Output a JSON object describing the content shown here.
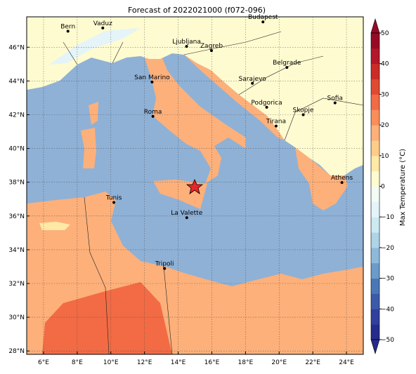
{
  "map": {
    "title": "Forecast of 2022021000 (f072-096)",
    "lon_lim": [
      5,
      25
    ],
    "lat_lim": [
      27.8,
      47.8
    ],
    "lon_ticks": [
      {
        "value": 6,
        "label": "6°E"
      },
      {
        "value": 8,
        "label": "8°E"
      },
      {
        "value": 10,
        "label": "10°E"
      },
      {
        "value": 12,
        "label": "12°E"
      },
      {
        "value": 14,
        "label": "14°E"
      },
      {
        "value": 16,
        "label": "16°E"
      },
      {
        "value": 18,
        "label": "18°E"
      },
      {
        "value": 20,
        "label": "20°E"
      },
      {
        "value": 22,
        "label": "22°E"
      },
      {
        "value": 24,
        "label": "24°E"
      }
    ],
    "lat_ticks": [
      {
        "value": 28,
        "label": "28°N"
      },
      {
        "value": 30,
        "label": "30°N"
      },
      {
        "value": 32,
        "label": "32°N"
      },
      {
        "value": 34,
        "label": "34°N"
      },
      {
        "value": 36,
        "label": "36°N"
      },
      {
        "value": 38,
        "label": "38°N"
      },
      {
        "value": 40,
        "label": "40°N"
      },
      {
        "value": 42,
        "label": "42°N"
      },
      {
        "value": 44,
        "label": "44°N"
      },
      {
        "value": 46,
        "label": "46°N"
      }
    ],
    "grid": true,
    "cities": [
      {
        "name": "Bern",
        "lon": 7.45,
        "lat": 46.95
      },
      {
        "name": "Vaduz",
        "lon": 9.52,
        "lat": 47.14
      },
      {
        "name": "Budapest",
        "lon": 19.04,
        "lat": 47.5
      },
      {
        "name": "Ljubljana",
        "lon": 14.5,
        "lat": 46.05
      },
      {
        "name": "Zagreb",
        "lon": 15.98,
        "lat": 45.8
      },
      {
        "name": "Belgrade",
        "lon": 20.46,
        "lat": 44.8
      },
      {
        "name": "San Marino",
        "lon": 12.45,
        "lat": 43.94
      },
      {
        "name": "Sarajevo",
        "lon": 18.41,
        "lat": 43.86
      },
      {
        "name": "Sofia",
        "lon": 23.32,
        "lat": 42.7
      },
      {
        "name": "Podgorica",
        "lon": 19.26,
        "lat": 42.44
      },
      {
        "name": "Skopje",
        "lon": 21.43,
        "lat": 42.0
      },
      {
        "name": "Roma",
        "lon": 12.5,
        "lat": 41.9
      },
      {
        "name": "Tirana",
        "lon": 19.82,
        "lat": 41.33
      },
      {
        "name": "Athens",
        "lon": 23.73,
        "lat": 37.98
      },
      {
        "name": "Tunis",
        "lon": 10.18,
        "lat": 36.8
      },
      {
        "name": "La Valette",
        "lon": 14.51,
        "lat": 35.9
      },
      {
        "name": "Tripoli",
        "lon": 13.19,
        "lat": 32.89
      }
    ],
    "colorbar": {
      "label": "Max Temperature (°C)",
      "lim": [
        -50,
        50
      ],
      "ticks": [
        {
          "value": -50,
          "label": "−50"
        },
        {
          "value": -40,
          "label": "−40"
        },
        {
          "value": -30,
          "label": "−30"
        },
        {
          "value": -20,
          "label": "−20"
        },
        {
          "value": -10,
          "label": "−10"
        },
        0,
        10,
        20,
        30,
        40,
        50
      ],
      "colors": [
        "#262c8c",
        "#313f9e",
        "#3b5aa8",
        "#4a78b6",
        "#6b9bc9",
        "#8fb9da",
        "#aed4e8",
        "#cde9f2",
        "#e4f4f8",
        "#f3fbf5",
        "#fffbd0",
        "#fee9a6",
        "#fdcc88",
        "#fdb07a",
        "#f98e5a",
        "#f26b45",
        "#e04a33",
        "#cc2c28",
        "#b3172a",
        "#970a26"
      ]
    }
  }
}
